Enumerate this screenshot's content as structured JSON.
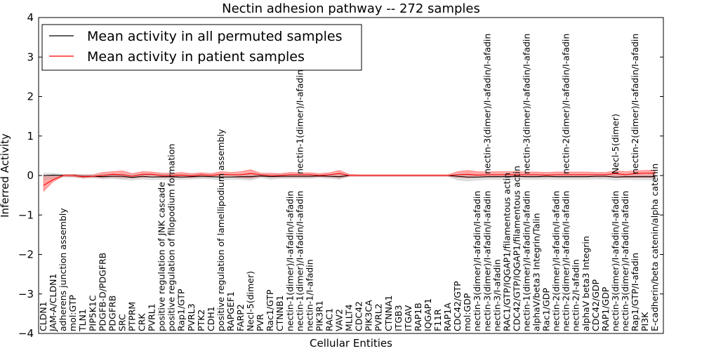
{
  "chart_data": {
    "type": "line",
    "title": "Nectin adhesion pathway -- 272 samples",
    "xlabel": "Cellular Entities",
    "ylabel": "Inferred Activity",
    "ylim": [
      -4,
      4
    ],
    "yticks": [
      -4,
      -3,
      -2,
      -1,
      0,
      1,
      2,
      3,
      4
    ],
    "ytick_labels": [
      "−4",
      "−3",
      "−2",
      "−1",
      "0",
      "1",
      "2",
      "3",
      "4"
    ],
    "legend": {
      "position": "top-left",
      "entries": [
        {
          "label": "Mean activity in all permuted samples",
          "color": "#000000"
        },
        {
          "label": "Mean activity in patient samples",
          "color": "#ff0000"
        }
      ]
    },
    "categories": [
      "CLDN1",
      "JAM-A/CLDN1",
      "adherens junction assembly",
      "mol:GTP",
      "TLN1",
      "PIP5K1C",
      "PDGFB-D/PDGFRB",
      "PDGFRB",
      "SRC",
      "PTPRM",
      "CRK",
      "PVRL1",
      "positive regulation of JNK cascade",
      "positive regulation of filopodium formation",
      "Rap1/GTP",
      "PVRL3",
      "PTK2",
      "CDH1",
      "positive regulation of lamellipodium assembly",
      "RAPGEF1",
      "FARP2",
      "Necl-5(dimer)",
      "PVR",
      "Rac1/GTP",
      "CTNNB1",
      "nectin-1(dimer)/I-afadin/I-afadin",
      "nectin-1(dimer)/I-afadin/I-afadin",
      "nectin-1/I-afadin",
      "PIK3R1",
      "RAC1",
      "VAV2",
      "MLLT4",
      "CDC42",
      "PIK3CA",
      "PVRL2",
      "CTNNA1",
      "ITGB3",
      "ITGAV",
      "RAP1B",
      "IQGAP1",
      "F11R",
      "RAP1A",
      "CDC42/GTP",
      "mol:GDP",
      "nectin-3(dimer)/I-afadin/I-afadin",
      "nectin-3(dimer)/I-afadin/I-afadin",
      "nectin-3/I-afadin",
      "RAC1/GTP/IQGAP1/filamentous actin",
      "CDC42/GTP/IQGAP1/filamentous actin",
      "nectin-1(dimer)/I-afadin/I-afadin",
      "alphaV/beta3 Integrin/Talin",
      "Rac1/GDP",
      "nectin-2(dimer)/I-afadin/I-afadin",
      "nectin-2(dimer)/I-afadin/I-afadin",
      "nectin-2/I-afadin",
      "alphaV beta3 Integrin",
      "CDC42/GDP",
      "RAP1/GDP",
      "nectin-3(dimer)/I-afadin/I-afadin",
      "nectin-3(dimer)/I-afadin/I-afadin",
      "Rap1/GTP/I-afadin",
      "PI3K",
      "E-cadherin/beta catenin/alpha catenin"
    ],
    "overflow_labels": [
      {
        "index": 26,
        "text": "nectin-1(dimer)/I-afadin"
      },
      {
        "index": 45,
        "text": "nectin-3(dimer)/I-afadin/I-afadin"
      },
      {
        "index": 49,
        "text": "nectin-3(dimer)/I-afadin/I-afadin"
      },
      {
        "index": 53,
        "text": "nectin-2(dimer)/I-afadin/I-afadin"
      },
      {
        "index": 58,
        "text": "Necl-5(dimer)"
      },
      {
        "index": 60,
        "text": "nectin-2(dimer)/I-afadin/I-afadin"
      }
    ],
    "series": [
      {
        "name": "Mean activity in patient samples",
        "color": "#ff0000",
        "band_color": "#ff0000",
        "values": [
          -0.25,
          -0.1,
          0.0,
          0.0,
          -0.03,
          -0.02,
          0.0,
          0.03,
          0.02,
          -0.02,
          0.03,
          0.03,
          0.0,
          0.0,
          0.01,
          -0.01,
          0.02,
          0.0,
          0.03,
          0.02,
          0.02,
          0.05,
          0.02,
          0.0,
          0.0,
          0.02,
          0.02,
          0.02,
          0.0,
          0.02,
          0.05,
          0.0,
          0.0,
          0.0,
          0.0,
          0.0,
          0.0,
          0.0,
          0.0,
          0.0,
          0.0,
          0.0,
          0.02,
          0.03,
          0.01,
          0.02,
          0.02,
          0.02,
          0.02,
          0.02,
          0.02,
          0.01,
          0.02,
          0.02,
          0.02,
          0.02,
          0.02,
          0.02,
          0.05,
          0.02,
          0.05,
          0.06,
          0.06
        ],
        "band_upper": [
          0.0,
          0.0,
          0.02,
          0.03,
          0.02,
          0.02,
          0.08,
          0.1,
          0.12,
          0.05,
          0.1,
          0.09,
          0.06,
          0.06,
          0.08,
          0.05,
          0.07,
          0.05,
          0.1,
          0.08,
          0.1,
          0.15,
          0.06,
          0.06,
          0.05,
          0.08,
          0.07,
          0.07,
          0.05,
          0.07,
          0.13,
          0.03,
          0.02,
          0.02,
          0.02,
          0.02,
          0.02,
          0.02,
          0.02,
          0.02,
          0.02,
          0.02,
          0.1,
          0.13,
          0.1,
          0.09,
          0.1,
          0.1,
          0.1,
          0.09,
          0.09,
          0.08,
          0.09,
          0.09,
          0.09,
          0.09,
          0.08,
          0.08,
          0.12,
          0.1,
          0.12,
          0.13,
          0.14
        ],
        "band_lower": [
          -0.4,
          -0.15,
          -0.02,
          -0.03,
          -0.06,
          -0.04,
          -0.05,
          -0.04,
          -0.06,
          -0.06,
          -0.05,
          -0.04,
          -0.05,
          -0.05,
          -0.05,
          -0.05,
          -0.04,
          -0.04,
          -0.04,
          -0.04,
          -0.06,
          -0.07,
          -0.03,
          -0.04,
          -0.04,
          -0.04,
          -0.04,
          -0.04,
          -0.03,
          -0.04,
          -0.06,
          -0.02,
          -0.02,
          -0.02,
          -0.02,
          -0.02,
          -0.02,
          -0.02,
          -0.02,
          -0.02,
          -0.02,
          -0.02,
          -0.05,
          -0.06,
          -0.05,
          -0.04,
          -0.04,
          -0.04,
          -0.04,
          -0.04,
          -0.04,
          -0.04,
          -0.04,
          -0.04,
          -0.04,
          -0.04,
          -0.04,
          -0.04,
          -0.05,
          -0.05,
          -0.05,
          -0.05,
          -0.05
        ]
      },
      {
        "name": "Mean activity in all permuted samples",
        "color": "#000000",
        "band_color": "#aaaaaa",
        "values": [
          0.0,
          0.01,
          0.0,
          0.0,
          -0.02,
          -0.02,
          -0.03,
          -0.02,
          -0.02,
          -0.05,
          -0.02,
          -0.04,
          -0.03,
          -0.03,
          -0.04,
          -0.03,
          -0.02,
          -0.03,
          -0.04,
          -0.04,
          -0.03,
          -0.03,
          -0.01,
          -0.03,
          -0.02,
          -0.02,
          -0.02,
          -0.02,
          -0.01,
          -0.02,
          -0.03,
          0.0,
          0.0,
          0.0,
          0.0,
          0.0,
          0.0,
          0.0,
          0.0,
          0.0,
          0.0,
          0.0,
          -0.02,
          -0.04,
          -0.04,
          -0.03,
          -0.03,
          -0.03,
          -0.02,
          -0.03,
          -0.03,
          -0.02,
          -0.03,
          -0.03,
          -0.03,
          -0.03,
          -0.02,
          -0.02,
          -0.04,
          -0.03,
          -0.03,
          -0.03,
          -0.03
        ],
        "band_upper": [
          0.06,
          0.06,
          0.03,
          0.03,
          0.02,
          0.02,
          0.03,
          0.03,
          0.03,
          0.02,
          0.03,
          0.02,
          0.03,
          0.03,
          0.02,
          0.02,
          0.02,
          0.02,
          0.02,
          0.02,
          0.02,
          0.02,
          0.02,
          0.02,
          0.02,
          0.02,
          0.02,
          0.02,
          0.02,
          0.02,
          0.02,
          0.01,
          0.01,
          0.01,
          0.01,
          0.01,
          0.01,
          0.01,
          0.01,
          0.01,
          0.01,
          0.01,
          0.02,
          0.02,
          0.02,
          0.02,
          0.02,
          0.02,
          0.02,
          0.02,
          0.02,
          0.02,
          0.02,
          0.02,
          0.02,
          0.02,
          0.02,
          0.02,
          0.02,
          0.02,
          0.02,
          0.02,
          0.02
        ],
        "band_lower": [
          -0.1,
          -0.06,
          -0.04,
          -0.04,
          -0.07,
          -0.06,
          -0.09,
          -0.08,
          -0.1,
          -0.12,
          -0.09,
          -0.11,
          -0.1,
          -0.1,
          -0.1,
          -0.09,
          -0.08,
          -0.09,
          -0.11,
          -0.1,
          -0.1,
          -0.12,
          -0.05,
          -0.1,
          -0.07,
          -0.07,
          -0.07,
          -0.07,
          -0.05,
          -0.07,
          -0.1,
          -0.02,
          -0.02,
          -0.02,
          -0.02,
          -0.02,
          -0.02,
          -0.02,
          -0.02,
          -0.02,
          -0.02,
          -0.02,
          -0.12,
          -0.14,
          -0.12,
          -0.1,
          -0.1,
          -0.1,
          -0.09,
          -0.1,
          -0.1,
          -0.09,
          -0.1,
          -0.1,
          -0.1,
          -0.1,
          -0.09,
          -0.09,
          -0.12,
          -0.1,
          -0.11,
          -0.11,
          -0.11
        ]
      }
    ]
  }
}
